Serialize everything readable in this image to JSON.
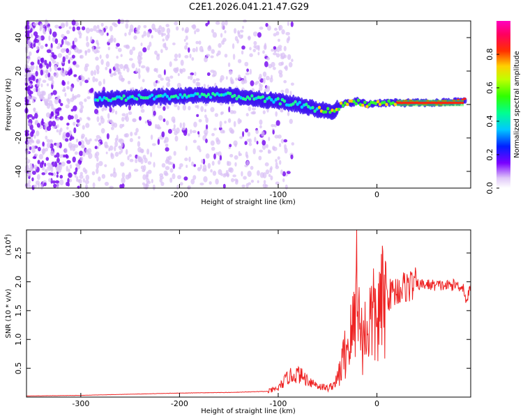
{
  "title": "C2E1.2026.041.21.47.G29",
  "chart_data": [
    {
      "type": "heatmap",
      "name": "spectrogram",
      "xlabel": "Height of straight line (km)",
      "ylabel": "Frequency (Hz)",
      "xlim": [
        -355,
        95
      ],
      "ylim": [
        -50,
        50
      ],
      "x_ticks": [
        -300,
        -200,
        -100,
        0
      ],
      "x_tick_labels": [
        "-300",
        "-200",
        "-100",
        "0"
      ],
      "y_ticks": [
        -40,
        -20,
        0,
        20,
        40
      ],
      "y_tick_labels": [
        "-40",
        "-20",
        "0",
        "20",
        "40"
      ],
      "ridge": {
        "x": [
          -285,
          -250,
          -200,
          -160,
          -130,
          -100,
          -80,
          -60,
          -45,
          -35,
          -20,
          -10,
          0,
          30,
          60,
          90
        ],
        "y": [
          3,
          4,
          5,
          6,
          4,
          2,
          0,
          -3,
          -4,
          0,
          2,
          0,
          1,
          1,
          1,
          2
        ]
      },
      "colorbar": {
        "label": "Normalized spectral amplitude",
        "range": [
          0,
          1
        ],
        "ticks": [
          0.0,
          0.2,
          0.4,
          0.6,
          0.8
        ],
        "tick_labels": [
          "0.0",
          "0.2",
          "0.4",
          "0.6",
          "0.8"
        ]
      }
    },
    {
      "type": "line",
      "name": "snr",
      "xlabel": "Height of straight line (km)",
      "ylabel": "SNR (10 * v/v)",
      "y_multiplier": "(x10",
      "y_multiplier_exp": "4",
      "y_multiplier_close": ")",
      "xlim": [
        -355,
        95
      ],
      "ylim": [
        0,
        2.9
      ],
      "x_ticks": [
        -300,
        -200,
        -100,
        0
      ],
      "x_tick_labels": [
        "-300",
        "-200",
        "-100",
        "0"
      ],
      "y_ticks": [
        0.5,
        1.0,
        1.5,
        2.0,
        2.5
      ],
      "y_tick_labels": [
        "0.5",
        "1.0",
        "1.5",
        "2.0",
        "2.5"
      ],
      "color": "#ee2222",
      "series": {
        "x": [
          -355,
          -300,
          -250,
          -200,
          -150,
          -110,
          -100,
          -95,
          -90,
          -80,
          -70,
          -60,
          -50,
          -45,
          -40,
          -35,
          -30,
          -25,
          -22,
          -20,
          -18,
          -15,
          -10,
          -5,
          0,
          5,
          10,
          20,
          30,
          40,
          50,
          60,
          70,
          80,
          88,
          90,
          95
        ],
        "y": [
          0.02,
          0.03,
          0.05,
          0.07,
          0.08,
          0.1,
          0.15,
          0.25,
          0.35,
          0.4,
          0.3,
          0.2,
          0.15,
          0.2,
          0.3,
          0.6,
          0.9,
          1.1,
          1.4,
          2.9,
          1.3,
          1.0,
          1.2,
          1.4,
          1.3,
          1.6,
          1.75,
          1.85,
          1.93,
          1.95,
          1.95,
          1.94,
          1.93,
          1.95,
          1.9,
          1.65,
          1.9
        ]
      }
    }
  ]
}
